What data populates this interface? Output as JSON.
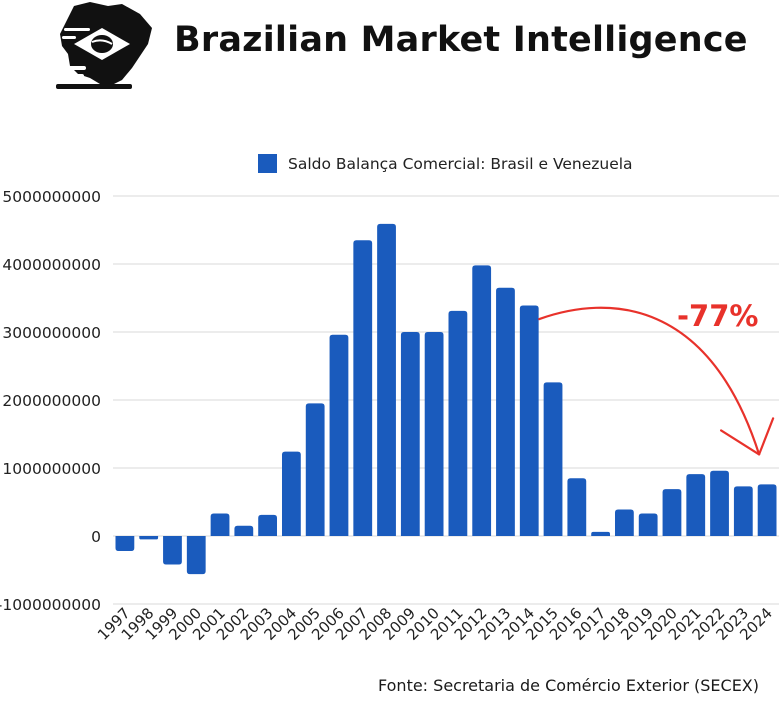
{
  "header": {
    "title": "Brazilian Market Intelligence"
  },
  "source": "Fonte: Secretaria de Comércio Exterior (SECEX)",
  "colors": {
    "bar": "#1a5bbd",
    "grid": "#d9d9d9",
    "annotation": "#e8322b",
    "text": "#222222"
  },
  "chart_data": {
    "type": "bar",
    "title": "",
    "xlabel": "",
    "ylabel": "",
    "ylim": [
      -1000000000,
      5000000000
    ],
    "yticks": [
      "5000000000",
      "4000000000",
      "3000000000",
      "2000000000",
      "1000000000",
      "0",
      "-1000000000"
    ],
    "grid": true,
    "legend": "top-center",
    "series": [
      {
        "name": "Saldo Balança Comercial: Brasil e Venezuela",
        "color": "#1a5bbd",
        "values": [
          -220000000,
          -50000000,
          -420000000,
          -560000000,
          330000000,
          150000000,
          310000000,
          1240000000,
          1950000000,
          2960000000,
          4350000000,
          4590000000,
          3000000000,
          3000000000,
          3310000000,
          3980000000,
          3650000000,
          3390000000,
          2260000000,
          850000000,
          60000000,
          390000000,
          330000000,
          690000000,
          910000000,
          960000000,
          730000000,
          760000000
        ]
      }
    ],
    "categories": [
      "1997",
      "1998",
      "1999",
      "2000",
      "2001",
      "2002",
      "2003",
      "2004",
      "2005",
      "2006",
      "2007",
      "2008",
      "2009",
      "2010",
      "2011",
      "2012",
      "2013",
      "2014",
      "2015",
      "2016",
      "2017",
      "2018",
      "2019",
      "2020",
      "2021",
      "2022",
      "2023",
      "2024"
    ],
    "annotation": {
      "text": "-77%",
      "from_category": "2014",
      "to_category": "2024"
    }
  }
}
